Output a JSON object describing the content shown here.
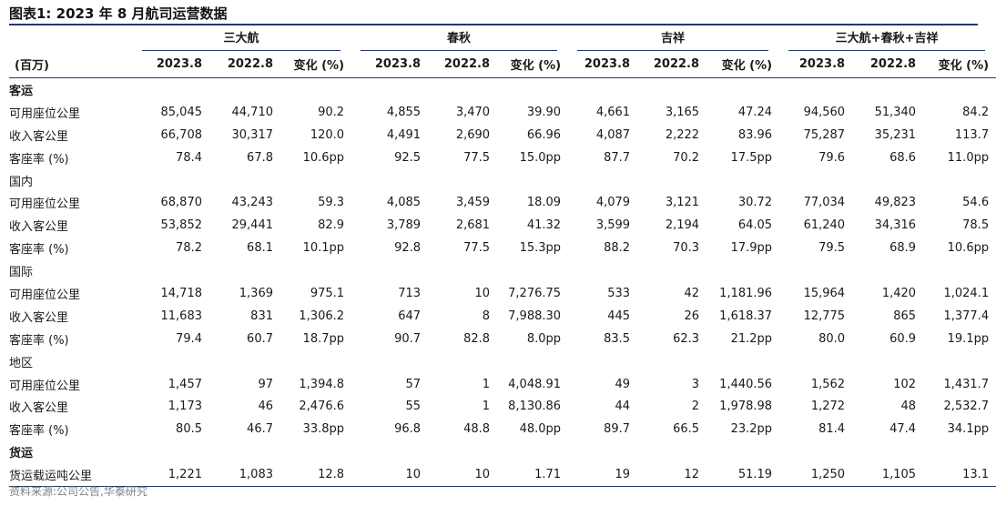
{
  "title": "图表1:  2023 年 8 月航司运营数据",
  "groups": [
    "三大航",
    "春秋",
    "吉祥",
    "三大航+春秋+吉祥"
  ],
  "header": {
    "unit": "(百万)",
    "cols": [
      "2023.8",
      "2022.8",
      "变化 (%)",
      "2023.8",
      "2022.8",
      "变化 (%)",
      "2023.8",
      "2022.8",
      "变化 (%)",
      "2023.8",
      "2022.8",
      "变化 (%)"
    ]
  },
  "sections": [
    {
      "title": "客运",
      "bold": true,
      "rows": [
        {
          "label": "可用座位公里",
          "values": [
            "85,045",
            "44,710",
            "90.2",
            "4,855",
            "3,470",
            "39.90",
            "4,661",
            "3,165",
            "47.24",
            "94,560",
            "51,340",
            "84.2"
          ]
        },
        {
          "label": "收入客公里",
          "values": [
            "66,708",
            "30,317",
            "120.0",
            "4,491",
            "2,690",
            "66.96",
            "4,087",
            "2,222",
            "83.96",
            "75,287",
            "35,231",
            "113.7"
          ]
        },
        {
          "label": "客座率 (%)",
          "values": [
            "78.4",
            "67.8",
            "10.6pp",
            "92.5",
            "77.5",
            "15.0pp",
            "87.7",
            "70.2",
            "17.5pp",
            "79.6",
            "68.6",
            "11.0pp"
          ]
        }
      ]
    },
    {
      "title": "国内",
      "bold": false,
      "rows": [
        {
          "label": "可用座位公里",
          "values": [
            "68,870",
            "43,243",
            "59.3",
            "4,085",
            "3,459",
            "18.09",
            "4,079",
            "3,121",
            "30.72",
            "77,034",
            "49,823",
            "54.6"
          ]
        },
        {
          "label": "收入客公里",
          "values": [
            "53,852",
            "29,441",
            "82.9",
            "3,789",
            "2,681",
            "41.32",
            "3,599",
            "2,194",
            "64.05",
            "61,240",
            "34,316",
            "78.5"
          ]
        },
        {
          "label": "客座率 (%)",
          "values": [
            "78.2",
            "68.1",
            "10.1pp",
            "92.8",
            "77.5",
            "15.3pp",
            "88.2",
            "70.3",
            "17.9pp",
            "79.5",
            "68.9",
            "10.6pp"
          ]
        }
      ]
    },
    {
      "title": "国际",
      "bold": false,
      "rows": [
        {
          "label": "可用座位公里",
          "values": [
            "14,718",
            "1,369",
            "975.1",
            "713",
            "10",
            "7,276.75",
            "533",
            "42",
            "1,181.96",
            "15,964",
            "1,420",
            "1,024.1"
          ]
        },
        {
          "label": "收入客公里",
          "values": [
            "11,683",
            "831",
            "1,306.2",
            "647",
            "8",
            "7,988.30",
            "445",
            "26",
            "1,618.37",
            "12,775",
            "865",
            "1,377.4"
          ]
        },
        {
          "label": "客座率 (%)",
          "values": [
            "79.4",
            "60.7",
            "18.7pp",
            "90.7",
            "82.8",
            "8.0pp",
            "83.5",
            "62.3",
            "21.2pp",
            "80.0",
            "60.9",
            "19.1pp"
          ]
        }
      ]
    },
    {
      "title": "地区",
      "bold": false,
      "rows": [
        {
          "label": "可用座位公里",
          "values": [
            "1,457",
            "97",
            "1,394.8",
            "57",
            "1",
            "4,048.91",
            "49",
            "3",
            "1,440.56",
            "1,562",
            "102",
            "1,431.7"
          ]
        },
        {
          "label": "收入客公里",
          "values": [
            "1,173",
            "46",
            "2,476.6",
            "55",
            "1",
            "8,130.86",
            "44",
            "2",
            "1,978.98",
            "1,272",
            "48",
            "2,532.7"
          ]
        },
        {
          "label": "客座率 (%)",
          "values": [
            "80.5",
            "46.7",
            "33.8pp",
            "96.8",
            "48.8",
            "48.0pp",
            "89.7",
            "66.5",
            "23.2pp",
            "81.4",
            "47.4",
            "34.1pp"
          ]
        }
      ]
    },
    {
      "title": "货运",
      "bold": true,
      "rows": [
        {
          "label": "货运载运吨公里",
          "values": [
            "1,221",
            "1,083",
            "12.8",
            "10",
            "10",
            "1.71",
            "19",
            "12",
            "51.19",
            "1,250",
            "1,105",
            "13.1"
          ]
        }
      ]
    }
  ],
  "source": "资料来源:公司公告,华泰研究"
}
